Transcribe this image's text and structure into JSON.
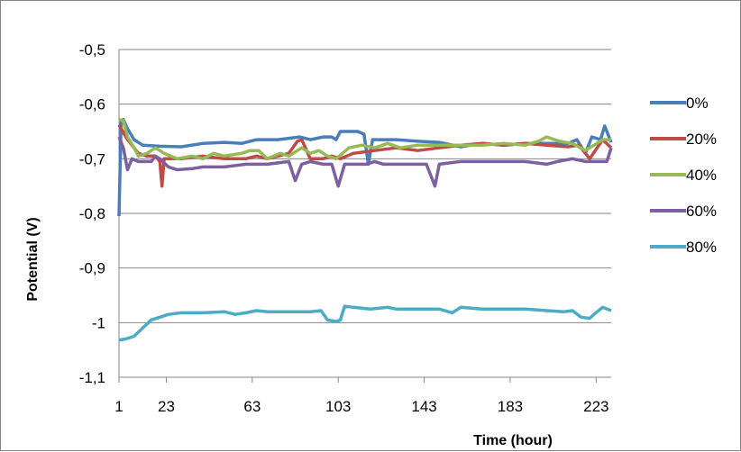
{
  "chart_data": {
    "type": "line",
    "title": "",
    "xlabel": "Time (hour)",
    "ylabel": "Potential (V)",
    "ylim": [
      -1.1,
      -0.5
    ],
    "xlim": [
      1,
      230
    ],
    "grid": "horizontal",
    "legend_position": "right",
    "x_ticks": [
      1,
      23,
      63,
      103,
      143,
      183,
      223
    ],
    "x_tick_labels": [
      "1",
      "23",
      "63",
      "103",
      "143",
      "183",
      "223"
    ],
    "y_ticks": [
      -1.1,
      -1.0,
      -0.9,
      -0.8,
      -0.7,
      -0.6,
      -0.5
    ],
    "y_tick_labels": [
      "-1,1",
      "-1",
      "-0,9",
      "-0,8",
      "-0,7",
      "-0,6",
      "-0,5"
    ],
    "series": [
      {
        "name": "0%",
        "color": "#4a7ebb",
        "points": [
          [
            1,
            -0.805
          ],
          [
            2,
            -0.63
          ],
          [
            3,
            -0.628
          ],
          [
            5,
            -0.645
          ],
          [
            8,
            -0.665
          ],
          [
            12,
            -0.675
          ],
          [
            20,
            -0.677
          ],
          [
            30,
            -0.678
          ],
          [
            40,
            -0.672
          ],
          [
            50,
            -0.67
          ],
          [
            58,
            -0.672
          ],
          [
            65,
            -0.665
          ],
          [
            75,
            -0.665
          ],
          [
            85,
            -0.66
          ],
          [
            90,
            -0.665
          ],
          [
            96,
            -0.66
          ],
          [
            100,
            -0.66
          ],
          [
            102,
            -0.665
          ],
          [
            104,
            -0.65
          ],
          [
            112,
            -0.65
          ],
          [
            115,
            -0.655
          ],
          [
            117,
            -0.71
          ],
          [
            119,
            -0.665
          ],
          [
            130,
            -0.665
          ],
          [
            140,
            -0.668
          ],
          [
            150,
            -0.67
          ],
          [
            160,
            -0.678
          ],
          [
            170,
            -0.672
          ],
          [
            180,
            -0.675
          ],
          [
            190,
            -0.672
          ],
          [
            200,
            -0.672
          ],
          [
            210,
            -0.672
          ],
          [
            214,
            -0.665
          ],
          [
            218,
            -0.69
          ],
          [
            221,
            -0.66
          ],
          [
            225,
            -0.665
          ],
          [
            227,
            -0.64
          ],
          [
            229,
            -0.66
          ],
          [
            230,
            -0.67
          ]
        ]
      },
      {
        "name": "20%",
        "color": "#be4b48",
        "points": [
          [
            1,
            -0.638
          ],
          [
            5,
            -0.665
          ],
          [
            10,
            -0.69
          ],
          [
            14,
            -0.695
          ],
          [
            18,
            -0.695
          ],
          [
            20,
            -0.705
          ],
          [
            21,
            -0.75
          ],
          [
            22,
            -0.7
          ],
          [
            30,
            -0.7
          ],
          [
            40,
            -0.695
          ],
          [
            50,
            -0.7
          ],
          [
            60,
            -0.7
          ],
          [
            65,
            -0.695
          ],
          [
            70,
            -0.7
          ],
          [
            80,
            -0.69
          ],
          [
            84,
            -0.668
          ],
          [
            86,
            -0.665
          ],
          [
            90,
            -0.7
          ],
          [
            96,
            -0.7
          ],
          [
            100,
            -0.695
          ],
          [
            104,
            -0.7
          ],
          [
            110,
            -0.69
          ],
          [
            120,
            -0.685
          ],
          [
            130,
            -0.68
          ],
          [
            140,
            -0.685
          ],
          [
            150,
            -0.68
          ],
          [
            160,
            -0.675
          ],
          [
            170,
            -0.672
          ],
          [
            180,
            -0.675
          ],
          [
            190,
            -0.672
          ],
          [
            200,
            -0.675
          ],
          [
            210,
            -0.678
          ],
          [
            215,
            -0.675
          ],
          [
            220,
            -0.7
          ],
          [
            226,
            -0.665
          ],
          [
            230,
            -0.68
          ]
        ]
      },
      {
        "name": "40%",
        "color": "#98b954",
        "points": [
          [
            1,
            -0.628
          ],
          [
            3,
            -0.63
          ],
          [
            5,
            -0.66
          ],
          [
            8,
            -0.68
          ],
          [
            10,
            -0.695
          ],
          [
            14,
            -0.69
          ],
          [
            18,
            -0.68
          ],
          [
            22,
            -0.69
          ],
          [
            28,
            -0.7
          ],
          [
            35,
            -0.695
          ],
          [
            40,
            -0.7
          ],
          [
            45,
            -0.69
          ],
          [
            50,
            -0.695
          ],
          [
            58,
            -0.69
          ],
          [
            62,
            -0.685
          ],
          [
            66,
            -0.685
          ],
          [
            70,
            -0.7
          ],
          [
            76,
            -0.69
          ],
          [
            80,
            -0.695
          ],
          [
            86,
            -0.68
          ],
          [
            90,
            -0.69
          ],
          [
            94,
            -0.685
          ],
          [
            98,
            -0.695
          ],
          [
            102,
            -0.7
          ],
          [
            108,
            -0.68
          ],
          [
            114,
            -0.675
          ],
          [
            120,
            -0.68
          ],
          [
            126,
            -0.672
          ],
          [
            132,
            -0.68
          ],
          [
            140,
            -0.675
          ],
          [
            150,
            -0.675
          ],
          [
            160,
            -0.675
          ],
          [
            170,
            -0.675
          ],
          [
            180,
            -0.672
          ],
          [
            190,
            -0.675
          ],
          [
            196,
            -0.668
          ],
          [
            200,
            -0.66
          ],
          [
            206,
            -0.668
          ],
          [
            212,
            -0.672
          ],
          [
            218,
            -0.685
          ],
          [
            222,
            -0.675
          ],
          [
            226,
            -0.665
          ],
          [
            230,
            -0.665
          ]
        ]
      },
      {
        "name": "60%",
        "color": "#7d60a0",
        "points": [
          [
            1,
            -0.66
          ],
          [
            3,
            -0.68
          ],
          [
            5,
            -0.72
          ],
          [
            7,
            -0.7
          ],
          [
            10,
            -0.705
          ],
          [
            14,
            -0.705
          ],
          [
            16,
            -0.705
          ],
          [
            18,
            -0.695
          ],
          [
            20,
            -0.7
          ],
          [
            24,
            -0.715
          ],
          [
            28,
            -0.72
          ],
          [
            35,
            -0.718
          ],
          [
            40,
            -0.715
          ],
          [
            50,
            -0.715
          ],
          [
            60,
            -0.71
          ],
          [
            70,
            -0.71
          ],
          [
            80,
            -0.705
          ],
          [
            83,
            -0.74
          ],
          [
            86,
            -0.71
          ],
          [
            90,
            -0.705
          ],
          [
            96,
            -0.71
          ],
          [
            100,
            -0.71
          ],
          [
            103,
            -0.75
          ],
          [
            106,
            -0.71
          ],
          [
            112,
            -0.71
          ],
          [
            116,
            -0.71
          ],
          [
            120,
            -0.705
          ],
          [
            124,
            -0.71
          ],
          [
            130,
            -0.71
          ],
          [
            140,
            -0.71
          ],
          [
            144,
            -0.71
          ],
          [
            148,
            -0.75
          ],
          [
            150,
            -0.71
          ],
          [
            160,
            -0.705
          ],
          [
            170,
            -0.705
          ],
          [
            180,
            -0.705
          ],
          [
            190,
            -0.705
          ],
          [
            200,
            -0.71
          ],
          [
            205,
            -0.705
          ],
          [
            212,
            -0.7
          ],
          [
            218,
            -0.705
          ],
          [
            224,
            -0.705
          ],
          [
            228,
            -0.705
          ],
          [
            230,
            -0.68
          ]
        ]
      },
      {
        "name": "80%",
        "color": "#4bacc6",
        "points": [
          [
            1,
            -1.032
          ],
          [
            4,
            -1.03
          ],
          [
            8,
            -1.025
          ],
          [
            12,
            -1.01
          ],
          [
            16,
            -0.995
          ],
          [
            20,
            -0.99
          ],
          [
            24,
            -0.985
          ],
          [
            30,
            -0.982
          ],
          [
            40,
            -0.982
          ],
          [
            50,
            -0.98
          ],
          [
            55,
            -0.985
          ],
          [
            60,
            -0.982
          ],
          [
            65,
            -0.978
          ],
          [
            70,
            -0.98
          ],
          [
            80,
            -0.98
          ],
          [
            90,
            -0.98
          ],
          [
            95,
            -0.978
          ],
          [
            98,
            -0.995
          ],
          [
            102,
            -0.998
          ],
          [
            104,
            -0.995
          ],
          [
            106,
            -0.97
          ],
          [
            110,
            -0.972
          ],
          [
            118,
            -0.975
          ],
          [
            126,
            -0.972
          ],
          [
            130,
            -0.975
          ],
          [
            140,
            -0.975
          ],
          [
            150,
            -0.975
          ],
          [
            156,
            -0.982
          ],
          [
            160,
            -0.972
          ],
          [
            170,
            -0.975
          ],
          [
            180,
            -0.975
          ],
          [
            190,
            -0.975
          ],
          [
            200,
            -0.978
          ],
          [
            208,
            -0.98
          ],
          [
            212,
            -0.978
          ],
          [
            216,
            -0.99
          ],
          [
            220,
            -0.992
          ],
          [
            222,
            -0.985
          ],
          [
            226,
            -0.972
          ],
          [
            230,
            -0.978
          ]
        ]
      }
    ]
  }
}
